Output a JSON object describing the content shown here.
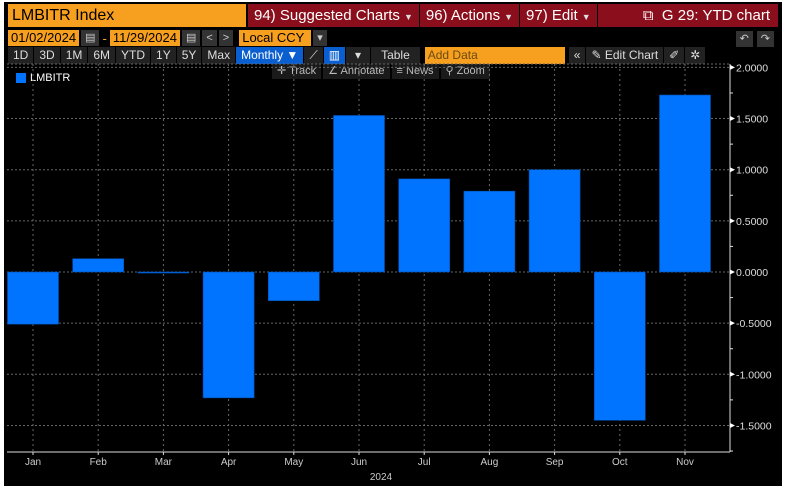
{
  "header": {
    "title": "LMBITR Index",
    "menus": [
      {
        "num": "94)",
        "label": "Suggested Charts"
      },
      {
        "num": "96)",
        "label": "Actions"
      },
      {
        "num": "97)",
        "label": "Edit"
      }
    ],
    "chart_title": "G 29: YTD chart"
  },
  "dates": {
    "start": "01/02/2024",
    "sep": "-",
    "end": "11/29/2024",
    "currency": "Local CCY"
  },
  "toolbar": {
    "ranges": [
      "1D",
      "3D",
      "1M",
      "6M",
      "YTD",
      "1Y",
      "5Y",
      "Max"
    ],
    "frequency": "Monthly ▼",
    "table": "Table",
    "add_data_placeholder": "Add Data",
    "edit_chart": "Edit Chart"
  },
  "tools": [
    "Track",
    "Annotate",
    "News",
    "Zoom"
  ],
  "colors": {
    "bar": "#0074ff",
    "title_bg": "#f7a020",
    "menu_bg": "#8a0e1c"
  },
  "chart_data": {
    "type": "bar",
    "categories": [
      "Jan",
      "Feb",
      "Mar",
      "Apr",
      "May",
      "Jun",
      "Jul",
      "Aug",
      "Sep",
      "Oct",
      "Nov"
    ],
    "series": [
      {
        "name": "LMBITR",
        "values": [
          -0.51,
          0.13,
          -0.01,
          -1.23,
          -0.28,
          1.53,
          0.91,
          0.79,
          1.0,
          -1.45,
          1.73
        ]
      }
    ],
    "xlabel": "2024",
    "yticks": [
      "2.0000",
      "1.5000",
      "1.0000",
      "0.5000",
      "0.0000",
      "-0.5000",
      "-1.0000",
      "-1.5000"
    ],
    "ylim": [
      -1.78,
      2.0
    ],
    "y_axis_side": "right",
    "grid": true,
    "legend": "top-left"
  }
}
